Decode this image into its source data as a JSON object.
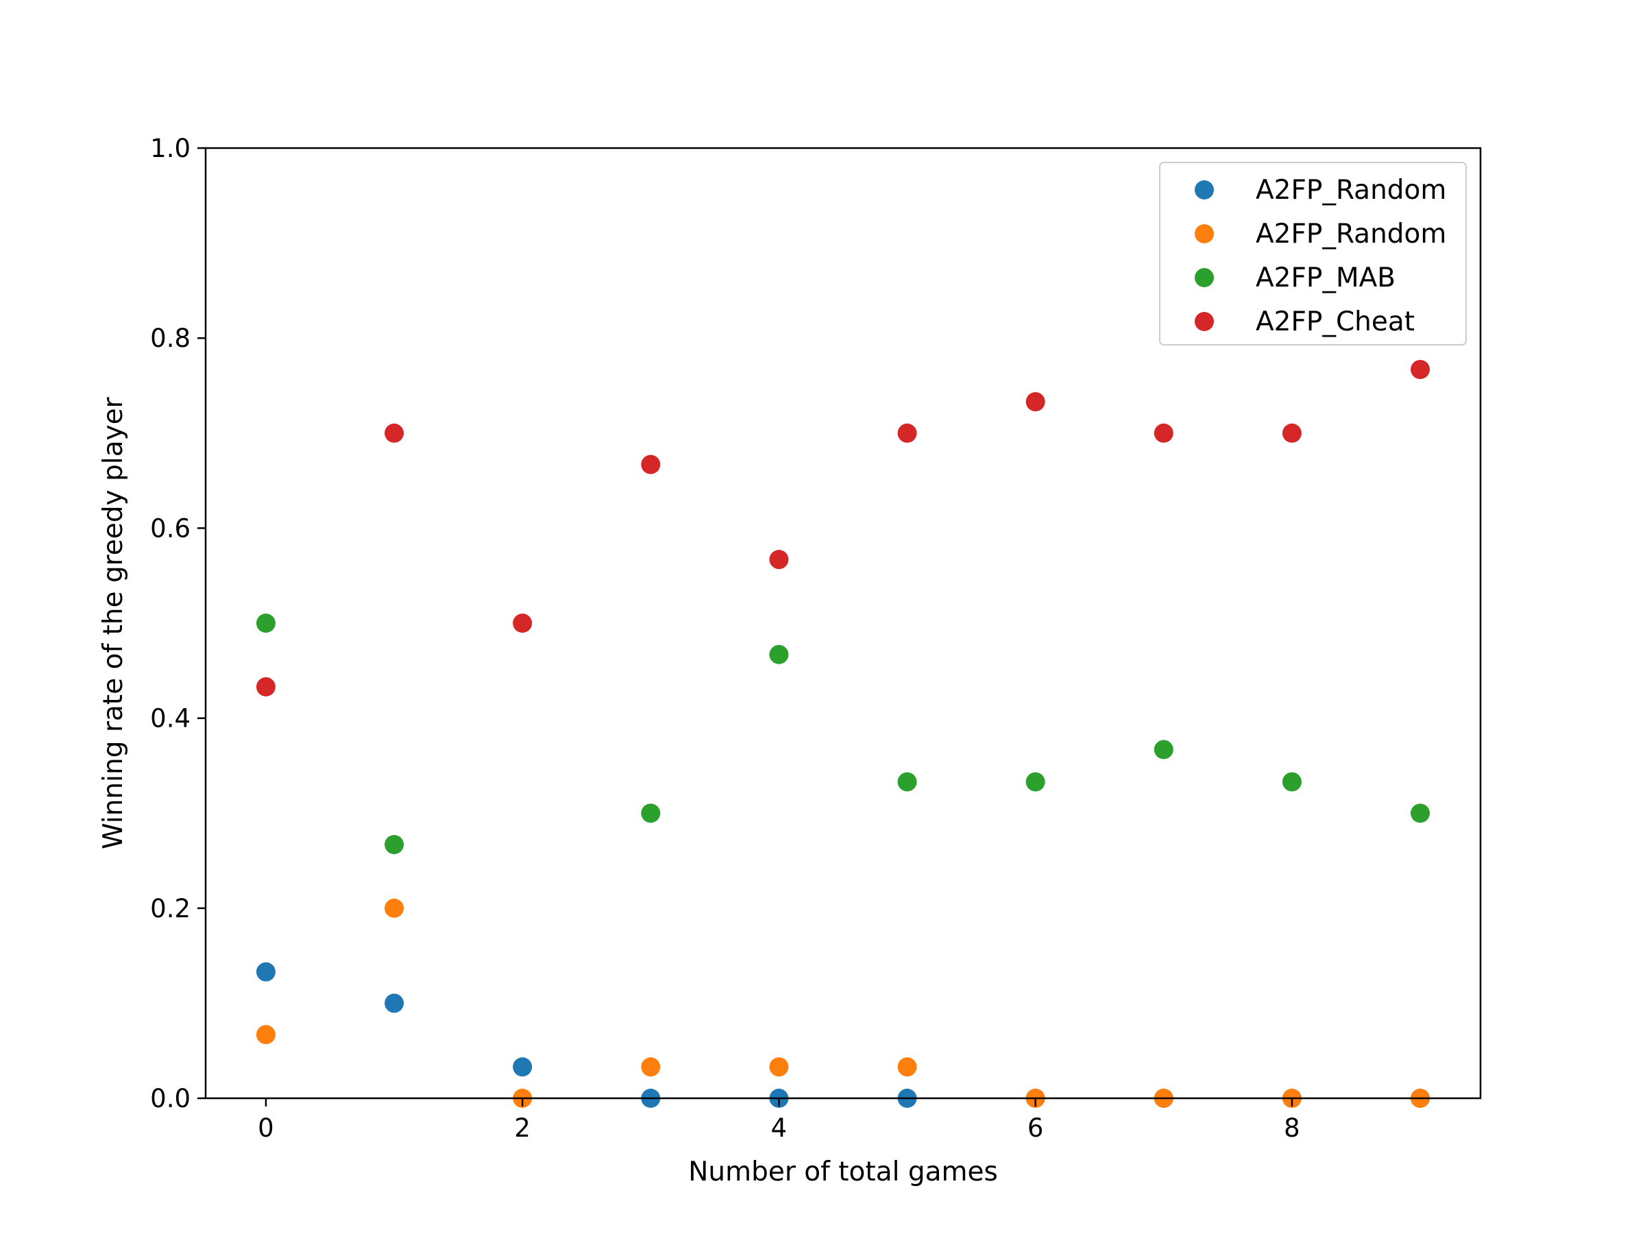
{
  "chart_data": {
    "type": "scatter",
    "title": "",
    "xlabel": "Number of total games",
    "ylabel": "Winning rate of the greedy player",
    "xlim": [
      -0.47,
      9.47
    ],
    "ylim": [
      0.0,
      1.0
    ],
    "xticks": [
      0,
      2,
      4,
      6,
      8
    ],
    "yticks": [
      0.0,
      0.2,
      0.4,
      0.6,
      0.8,
      1.0
    ],
    "xtick_labels": [
      "0",
      "2",
      "4",
      "6",
      "8"
    ],
    "ytick_labels": [
      "0.0",
      "0.2",
      "0.4",
      "0.6",
      "0.8",
      "1.0"
    ],
    "grid": false,
    "legend_position": "top-right",
    "x": [
      0,
      1,
      2,
      3,
      4,
      5,
      6,
      7,
      8,
      9
    ],
    "series": [
      {
        "name": "A2FP_Random",
        "color": "#1f77b4",
        "values": [
          0.133,
          0.1,
          0.033,
          0.0,
          0.0,
          0.0,
          0.0,
          0.0,
          0.0,
          0.0
        ]
      },
      {
        "name": "A2FP_Random",
        "color": "#ff7f0e",
        "values": [
          0.067,
          0.2,
          0.0,
          0.033,
          0.033,
          0.033,
          0.0,
          0.0,
          0.0,
          0.0
        ]
      },
      {
        "name": "A2FP_MAB",
        "color": "#2ca02c",
        "values": [
          0.5,
          0.267,
          null,
          0.3,
          0.467,
          0.333,
          0.333,
          0.367,
          0.333,
          0.3
        ]
      },
      {
        "name": "A2FP_Cheat",
        "color": "#d62728",
        "values": [
          0.433,
          0.7,
          0.5,
          0.667,
          0.567,
          0.7,
          0.733,
          0.7,
          0.7,
          0.767
        ]
      }
    ]
  }
}
